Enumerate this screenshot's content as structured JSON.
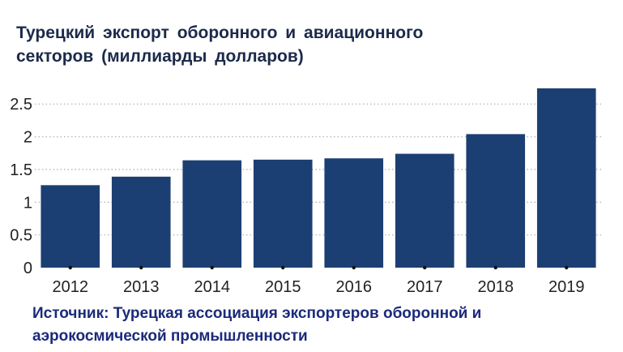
{
  "title": {
    "line1": "Турецкий  экспорт  оборонного  и  авиационного",
    "line2": "секторов (миллиарды долларов)"
  },
  "source": {
    "line1": "Источник: Турецкая ассоциация экспортеров оборонной и",
    "line2": "аэрокосмической промышленности"
  },
  "colors": {
    "bar": "#1c3f73",
    "grid": "#b5b5b5",
    "title": "#1b2a4a",
    "source": "#1b2a7a"
  },
  "chart_data": {
    "type": "bar",
    "categories": [
      "2012",
      "2013",
      "2014",
      "2015",
      "2016",
      "2017",
      "2018",
      "2019"
    ],
    "values": [
      1.26,
      1.39,
      1.64,
      1.65,
      1.67,
      1.74,
      2.04,
      2.74
    ],
    "yticks": [
      "0",
      "0.5",
      "1",
      "1.5",
      "2",
      "2.5"
    ],
    "ylim": [
      0,
      2.85
    ],
    "grid": "horizontal dotted",
    "legend": "none",
    "xlabel": "",
    "ylabel": ""
  }
}
